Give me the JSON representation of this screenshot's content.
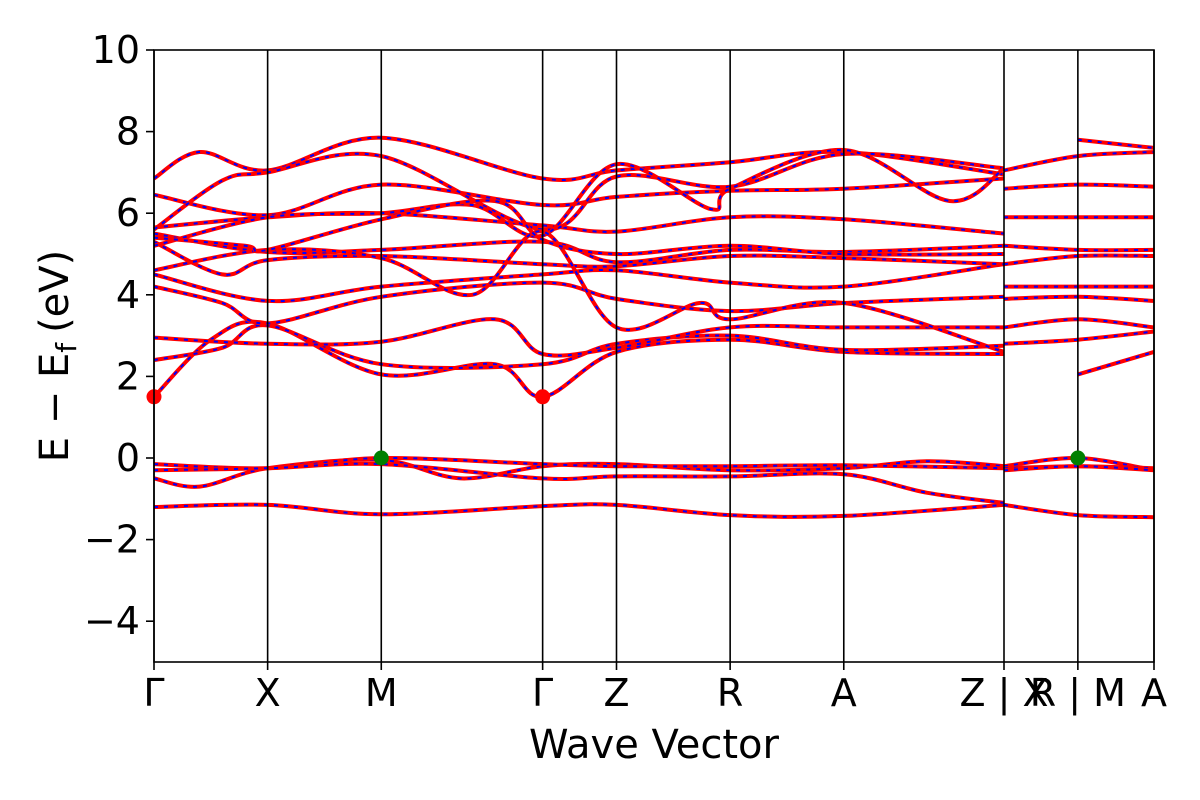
{
  "chart_data": {
    "type": "line",
    "title": "",
    "xlabel": "Wave Vector",
    "ylabel": "E − E",
    "ylabel_subscript": "f",
    "ylabel_unit": "(eV)",
    "ylim": [
      -5,
      10
    ],
    "yticks": [
      {
        "value": -4,
        "label": "−4"
      },
      {
        "value": -2,
        "label": "−2"
      },
      {
        "value": 0,
        "label": "0"
      },
      {
        "value": 2,
        "label": "2"
      },
      {
        "value": 4,
        "label": "4"
      },
      {
        "value": 6,
        "label": "6"
      },
      {
        "value": 8,
        "label": "8"
      },
      {
        "value": 10,
        "label": "10"
      }
    ],
    "xlim": [
      0,
      8.8
    ],
    "kpoints": [
      {
        "label": "Γ",
        "x": 0.0
      },
      {
        "label": "X",
        "x": 1.0
      },
      {
        "label": "M",
        "x": 2.0
      },
      {
        "label": "Γ",
        "x": 3.42
      },
      {
        "label": "Z",
        "x": 4.07
      },
      {
        "label": "R",
        "x": 5.07
      },
      {
        "label": "A",
        "x": 6.07
      },
      {
        "label": "Z | X",
        "x": 7.48
      },
      {
        "label": "R | M",
        "x": 8.13
      },
      {
        "label": "A",
        "x": 8.8
      }
    ],
    "style": {
      "line_primary": "#ff0000",
      "line_overlay": "#0000ff",
      "vbm_color": "#008000",
      "cbm_color": "#ff0000",
      "grid": false
    },
    "extrema": [
      {
        "type": "cbm",
        "x": 0.0,
        "y": 1.5
      },
      {
        "type": "cbm",
        "x": 3.42,
        "y": 1.5
      },
      {
        "type": "vbm",
        "x": 2.0,
        "y": 0.0
      },
      {
        "type": "vbm",
        "x": 8.13,
        "y": 0.0
      }
    ],
    "series": [
      {
        "values": [
          [
            [
              0,
              -1.2
            ],
            [
              1,
              -1.15
            ],
            [
              2,
              -1.38
            ],
            [
              3.42,
              -1.18
            ],
            [
              4.07,
              -1.15
            ],
            [
              5.07,
              -1.4
            ],
            [
              6.07,
              -1.42
            ],
            [
              7.48,
              -1.15
            ]
          ],
          [
            [
              7.48,
              -1.15
            ],
            [
              8.13,
              -1.4
            ],
            [
              8.8,
              -1.45
            ]
          ]
        ]
      },
      {
        "values": [
          [
            [
              0,
              -0.5
            ],
            [
              0.4,
              -0.7
            ],
            [
              1,
              -0.25
            ],
            [
              2,
              -0.05
            ],
            [
              2.7,
              -0.5
            ],
            [
              3.42,
              -0.2
            ],
            [
              4.07,
              -0.15
            ],
            [
              5.07,
              -0.3
            ],
            [
              6.07,
              -0.25
            ],
            [
              6.8,
              -0.08
            ],
            [
              7.48,
              -0.2
            ]
          ],
          [
            [
              7.48,
              -0.2
            ],
            [
              8.13,
              0.0
            ],
            [
              8.8,
              -0.3
            ]
          ]
        ]
      },
      {
        "values": [
          [
            [
              0,
              -0.15
            ],
            [
              1,
              -0.25
            ],
            [
              2,
              0.0
            ],
            [
              3.42,
              -0.15
            ],
            [
              4.07,
              -0.2
            ],
            [
              5.07,
              -0.2
            ],
            [
              6.07,
              -0.18
            ],
            [
              7.48,
              -0.25
            ]
          ],
          [
            [
              7.48,
              -0.25
            ],
            [
              8.13,
              -0.2
            ],
            [
              8.8,
              -0.25
            ]
          ]
        ]
      },
      {
        "values": [
          [
            [
              0,
              -0.3
            ],
            [
              1,
              -0.25
            ],
            [
              2,
              -0.15
            ],
            [
              3.42,
              -0.5
            ],
            [
              4.07,
              -0.45
            ],
            [
              5.07,
              -0.45
            ],
            [
              6.07,
              -0.4
            ],
            [
              6.8,
              -0.85
            ],
            [
              7.48,
              -1.1
            ]
          ],
          [
            [
              7.48,
              -0.3
            ],
            [
              8.13,
              -0.2
            ],
            [
              8.8,
              -0.3
            ]
          ]
        ]
      },
      {
        "values": [
          [
            [
              0,
              1.5
            ],
            [
              0.5,
              2.9
            ],
            [
              1,
              3.3
            ],
            [
              2,
              2.05
            ],
            [
              3.0,
              2.3
            ],
            [
              3.42,
              1.5
            ],
            [
              4.07,
              2.6
            ],
            [
              5.07,
              2.9
            ],
            [
              6.07,
              2.6
            ],
            [
              7.48,
              2.55
            ]
          ],
          [
            [
              8.13,
              2.05
            ],
            [
              8.8,
              2.6
            ]
          ]
        ]
      },
      {
        "values": [
          [
            [
              0,
              2.4
            ],
            [
              0.6,
              2.7
            ],
            [
              1,
              3.25
            ],
            [
              2,
              2.3
            ],
            [
              3.42,
              2.3
            ],
            [
              4.07,
              2.8
            ],
            [
              5.07,
              3.0
            ],
            [
              6.07,
              2.65
            ],
            [
              7.48,
              2.75
            ]
          ],
          [
            [
              7.48,
              2.8
            ],
            [
              8.13,
              2.9
            ],
            [
              8.8,
              3.1
            ]
          ]
        ]
      },
      {
        "values": [
          [
            [
              0,
              2.95
            ],
            [
              1,
              2.8
            ],
            [
              2,
              2.85
            ],
            [
              3.0,
              3.4
            ],
            [
              3.42,
              2.55
            ],
            [
              4.07,
              2.7
            ],
            [
              5.07,
              3.2
            ],
            [
              6.07,
              3.2
            ],
            [
              7.48,
              3.2
            ]
          ],
          [
            [
              7.48,
              3.2
            ],
            [
              8.13,
              3.4
            ],
            [
              8.8,
              3.2
            ]
          ]
        ]
      },
      {
        "values": [
          [
            [
              0,
              4.2
            ],
            [
              0.6,
              3.8
            ],
            [
              1,
              3.3
            ],
            [
              2,
              3.95
            ],
            [
              3.42,
              4.3
            ],
            [
              4.07,
              3.9
            ],
            [
              5.07,
              3.6
            ],
            [
              6.07,
              3.8
            ],
            [
              7.48,
              3.95
            ]
          ],
          [
            [
              7.48,
              3.9
            ],
            [
              8.13,
              3.95
            ],
            [
              8.8,
              3.85
            ]
          ]
        ]
      },
      {
        "values": [
          [
            [
              0,
              4.5
            ],
            [
              1,
              3.85
            ],
            [
              2,
              4.2
            ],
            [
              3.42,
              4.5
            ],
            [
              4.07,
              4.6
            ],
            [
              5.07,
              4.3
            ],
            [
              6.07,
              4.2
            ],
            [
              7.48,
              4.75
            ]
          ],
          [
            [
              7.48,
              4.2
            ],
            [
              8.13,
              4.2
            ],
            [
              8.8,
              4.2
            ]
          ]
        ]
      },
      {
        "values": [
          [
            [
              0,
              5.3
            ],
            [
              0.6,
              4.5
            ],
            [
              1,
              4.85
            ],
            [
              2,
              4.95
            ],
            [
              3.42,
              4.75
            ],
            [
              4.07,
              4.7
            ],
            [
              5.07,
              4.95
            ],
            [
              6.07,
              4.9
            ],
            [
              7.48,
              4.75
            ]
          ],
          [
            [
              7.48,
              4.75
            ],
            [
              8.13,
              4.95
            ],
            [
              8.8,
              4.95
            ]
          ]
        ]
      },
      {
        "values": [
          [
            [
              0,
              5.5
            ],
            [
              1,
              5.05
            ],
            [
              2,
              5.1
            ],
            [
              3.42,
              5.3
            ],
            [
              4.07,
              4.8
            ],
            [
              5.07,
              5.1
            ],
            [
              6.07,
              5.05
            ],
            [
              7.48,
              5.2
            ]
          ],
          [
            [
              7.48,
              5.2
            ],
            [
              8.13,
              5.1
            ],
            [
              8.8,
              5.1
            ]
          ]
        ]
      },
      {
        "values": [
          [
            [
              0,
              5.65
            ],
            [
              1,
              5.9
            ],
            [
              2,
              6.0
            ],
            [
              3.42,
              5.7
            ],
            [
              4.07,
              5.55
            ],
            [
              5.07,
              5.9
            ],
            [
              6.07,
              5.85
            ],
            [
              7.48,
              5.5
            ]
          ],
          [
            [
              7.48,
              5.9
            ],
            [
              8.13,
              5.9
            ],
            [
              8.8,
              5.9
            ]
          ]
        ]
      },
      {
        "values": [
          [
            [
              0,
              6.45
            ],
            [
              1,
              5.95
            ],
            [
              2,
              6.7
            ],
            [
              3.42,
              6.2
            ],
            [
              4.07,
              6.4
            ],
            [
              5.07,
              6.55
            ],
            [
              6.07,
              6.6
            ],
            [
              7.48,
              6.85
            ]
          ],
          [
            [
              7.48,
              6.6
            ],
            [
              8.13,
              6.7
            ],
            [
              8.8,
              6.65
            ]
          ]
        ]
      },
      {
        "values": [
          [
            [
              0,
              6.85
            ],
            [
              0.4,
              7.5
            ],
            [
              1,
              7.05
            ],
            [
              2,
              7.85
            ],
            [
              3.42,
              6.85
            ],
            [
              4.07,
              7.05
            ],
            [
              5.07,
              7.25
            ],
            [
              6.07,
              7.5
            ],
            [
              7.48,
              6.95
            ]
          ],
          [
            [
              7.48,
              7.05
            ],
            [
              8.13,
              7.4
            ],
            [
              8.8,
              7.5
            ]
          ]
        ]
      },
      {
        "values": [
          [
            [
              0,
              5.6
            ],
            [
              0.6,
              6.8
            ],
            [
              1,
              7.0
            ],
            [
              2,
              7.4
            ],
            [
              3.42,
              5.6
            ],
            [
              4.07,
              6.9
            ],
            [
              5.07,
              6.65
            ],
            [
              6.07,
              7.45
            ],
            [
              7.48,
              7.1
            ]
          ],
          [
            [
              8.13,
              7.8
            ],
            [
              8.8,
              7.6
            ]
          ]
        ]
      },
      {
        "values": [
          [
            [
              0,
              5.2
            ],
            [
              1,
              5.9
            ],
            [
              2,
              6.0
            ],
            [
              2.8,
              6.2
            ],
            [
              3.42,
              5.45
            ],
            [
              4.07,
              7.2
            ],
            [
              4.9,
              6.1
            ],
            [
              5.07,
              6.6
            ],
            [
              6.07,
              7.55
            ],
            [
              7.0,
              6.3
            ],
            [
              7.48,
              7.1
            ]
          ]
        ]
      },
      {
        "values": [
          [
            [
              0,
              4.6
            ],
            [
              1,
              5.1
            ],
            [
              2,
              4.9
            ],
            [
              2.8,
              4.0
            ],
            [
              3.42,
              5.55
            ],
            [
              4.07,
              3.2
            ],
            [
              4.8,
              3.8
            ],
            [
              5.07,
              3.4
            ],
            [
              6.07,
              3.8
            ],
            [
              7.48,
              2.6
            ]
          ]
        ]
      },
      {
        "values": [
          [
            [
              0,
              5.4
            ],
            [
              0.8,
              5.2
            ],
            [
              1,
              5.1
            ],
            [
              2,
              5.85
            ],
            [
              3.0,
              6.3
            ],
            [
              3.42,
              5.35
            ],
            [
              4.07,
              5.0
            ],
            [
              5.07,
              5.2
            ],
            [
              6.07,
              5.0
            ],
            [
              7.48,
              5.0
            ]
          ]
        ]
      }
    ]
  }
}
